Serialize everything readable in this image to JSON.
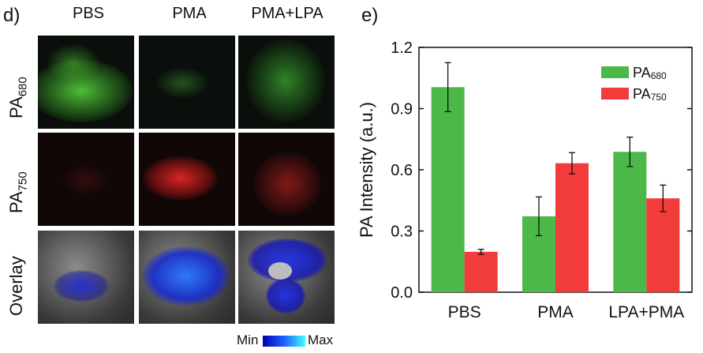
{
  "left_panel": {
    "letter": "d)",
    "columns": [
      "PBS",
      "PMA",
      "PMA+LPA"
    ],
    "rows": [
      {
        "base": "PA",
        "sub": "680"
      },
      {
        "base": "PA",
        "sub": "750"
      },
      {
        "base": "Overlay",
        "sub": ""
      }
    ],
    "colorbar": {
      "min_label": "Min",
      "max_label": "Max"
    }
  },
  "chart_data": {
    "panel_letter": "e)",
    "type": "bar",
    "categories": [
      "PBS",
      "PMA",
      "LPA+PMA"
    ],
    "series": [
      {
        "name": "PA680",
        "base": "PA",
        "sub": "680",
        "color": "#4cb848",
        "values": [
          1.005,
          0.372,
          0.688
        ],
        "errors": [
          0.12,
          0.095,
          0.072
        ]
      },
      {
        "name": "PA750",
        "base": "PA",
        "sub": "750",
        "color": "#f23b3b",
        "values": [
          0.198,
          0.632,
          0.46
        ],
        "errors": [
          0.012,
          0.052,
          0.065
        ]
      }
    ],
    "ylabel": "PA Intensity (a.u.)",
    "xlabel": "",
    "ylim": [
      0,
      1.2
    ],
    "yticks": [
      "0.0",
      "0.3",
      "0.6",
      "0.9",
      "1.2"
    ],
    "legend_position": "top-right",
    "grid": false
  }
}
